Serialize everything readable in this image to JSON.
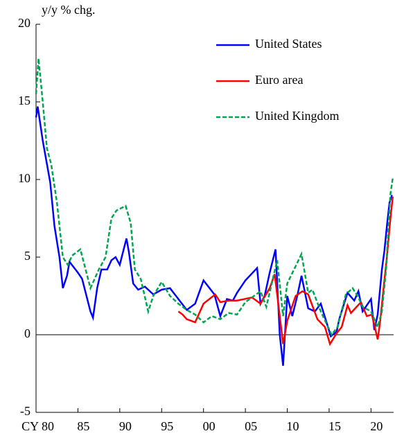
{
  "chart_data": {
    "type": "line",
    "y_label": "y/y % chg.",
    "xlim": [
      1980,
      2022.7
    ],
    "ylim": [
      -5,
      20
    ],
    "yticks": [
      -5,
      0,
      5,
      10,
      15,
      20
    ],
    "xticks": [
      {
        "value": 1980,
        "label": "CY 80"
      },
      {
        "value": 1985,
        "label": "85"
      },
      {
        "value": 1990,
        "label": "90"
      },
      {
        "value": 1995,
        "label": "95"
      },
      {
        "value": 2000,
        "label": "00"
      },
      {
        "value": 2005,
        "label": "05"
      },
      {
        "value": 2010,
        "label": "10"
      },
      {
        "value": 2015,
        "label": "15"
      },
      {
        "value": 2020,
        "label": "20"
      }
    ],
    "legend": "top-right",
    "series": [
      {
        "name": "United States",
        "color": "#0000ff",
        "dash": false,
        "x": [
          1980,
          1980.2,
          1980.8,
          1981.3,
          1981.7,
          1982.2,
          1982.8,
          1983.2,
          1983.7,
          1984,
          1985,
          1985.5,
          1986.5,
          1986.8,
          1987.3,
          1987.8,
          1988.5,
          1989,
          1989.5,
          1990,
          1990.8,
          1991.1,
          1991.6,
          1992.2,
          1993,
          1994,
          1995,
          1996,
          1997,
          1998,
          1999,
          2000,
          2001.3,
          2002,
          2002.8,
          2003.5,
          2004,
          2005,
          2006.4,
          2006.8,
          2007.3,
          2007.9,
          2008.6,
          2009.1,
          2009.5,
          2010,
          2010.6,
          2011.2,
          2011.7,
          2012.5,
          2013.3,
          2014,
          2015.2,
          2015.9,
          2016.2,
          2016.9,
          2017.2,
          2018,
          2018.5,
          2019,
          2020,
          2020.4,
          2020.8,
          2021.3,
          2021.6,
          2021.9,
          2022.2,
          2022.5
        ],
        "values": [
          14.0,
          14.7,
          12.5,
          11.0,
          9.8,
          7.0,
          5.0,
          3.0,
          3.8,
          4.7,
          4.0,
          3.6,
          1.5,
          1.1,
          3.0,
          4.2,
          4.2,
          4.8,
          5.0,
          4.5,
          6.2,
          5.3,
          3.3,
          2.9,
          3.1,
          2.6,
          2.9,
          3.0,
          2.3,
          1.6,
          2.0,
          3.5,
          2.6,
          1.2,
          2.3,
          2.2,
          2.7,
          3.5,
          4.3,
          2.0,
          2.5,
          4.0,
          5.5,
          0.0,
          -2.0,
          2.5,
          1.2,
          2.5,
          3.8,
          1.7,
          1.5,
          2.0,
          -0.1,
          0.2,
          1.0,
          2.2,
          2.7,
          2.2,
          2.8,
          1.5,
          2.3,
          0.3,
          1.3,
          4.2,
          5.4,
          7.0,
          8.5,
          9.0
        ]
      },
      {
        "name": "Euro area",
        "color": "#ff0000",
        "dash": false,
        "x": [
          1997,
          1997.5,
          1998,
          1999,
          2000,
          2001.4,
          2002,
          2003,
          2004,
          2005.8,
          2006.8,
          2007.9,
          2008.5,
          2009.5,
          2010,
          2011,
          2011.8,
          2012.5,
          2013.6,
          2014.5,
          2015.1,
          2015.9,
          2016.5,
          2017.2,
          2017.6,
          2018.8,
          2019.5,
          2020.1,
          2020.8,
          2021.1,
          2021.5,
          2021.9,
          2022.3,
          2022.6
        ],
        "values": [
          1.5,
          1.3,
          1.0,
          0.8,
          2.0,
          2.6,
          2.1,
          2.2,
          2.2,
          2.4,
          2.0,
          3.0,
          3.9,
          -0.6,
          0.9,
          2.5,
          2.8,
          2.6,
          1.0,
          0.5,
          -0.6,
          0.1,
          0.5,
          1.9,
          1.4,
          2.1,
          1.2,
          1.3,
          -0.3,
          0.9,
          3.0,
          5.0,
          7.4,
          8.9
        ]
      },
      {
        "name": "United Kingdom",
        "color": "#00a550",
        "dash": true,
        "x": [
          1980,
          1980.3,
          1980.8,
          1981.3,
          1981.8,
          1982.5,
          1983.2,
          1983.8,
          1984.3,
          1985.3,
          1986.5,
          1987.5,
          1988.3,
          1989,
          1989.6,
          1990.7,
          1991.3,
          1991.8,
          1992.5,
          1993.4,
          1994,
          1995,
          1996,
          1997,
          1998,
          1999,
          2000,
          2001,
          2002,
          2003,
          2004,
          2005,
          2006.8,
          2007.5,
          2008.8,
          2009.5,
          2010,
          2011.7,
          2012.5,
          2013,
          2014,
          2015.3,
          2016,
          2017,
          2017.8,
          2018.5,
          2019,
          2020,
          2020.8,
          2021.3,
          2021.8,
          2022.3,
          2022.6
        ],
        "values": [
          15.5,
          17.8,
          15.0,
          12.0,
          11.0,
          8.5,
          5.0,
          4.5,
          5.1,
          5.5,
          3.0,
          4.2,
          5.0,
          7.5,
          8.0,
          8.3,
          7.2,
          4.2,
          3.6,
          1.5,
          2.5,
          3.4,
          2.5,
          2.0,
          1.6,
          1.3,
          0.8,
          1.2,
          1.0,
          1.4,
          1.3,
          2.1,
          2.8,
          1.8,
          4.8,
          1.2,
          3.3,
          5.2,
          2.7,
          2.9,
          1.5,
          0.0,
          0.5,
          2.6,
          3.0,
          2.4,
          1.8,
          1.5,
          0.5,
          1.5,
          4.2,
          9.0,
          10.1
        ]
      }
    ]
  }
}
